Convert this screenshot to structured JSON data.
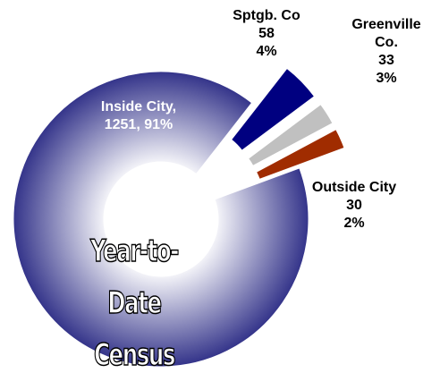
{
  "chart_data": {
    "type": "donut",
    "title": "Year-to-Date Census",
    "categories": [
      "Inside City,",
      "Sptgb. Co",
      "Greenville Co.",
      "Outside City"
    ],
    "values": [
      1251,
      58,
      33,
      30
    ],
    "value_labels": [
      "1251,",
      "58",
      "33",
      "30"
    ],
    "percent_labels": [
      "91%",
      "4%",
      "3%",
      "2%"
    ],
    "colors": [
      "#34348a",
      "#000080",
      "#c0c0c0",
      "#a02c00"
    ],
    "exploded": [
      false,
      true,
      true,
      true
    ]
  }
}
